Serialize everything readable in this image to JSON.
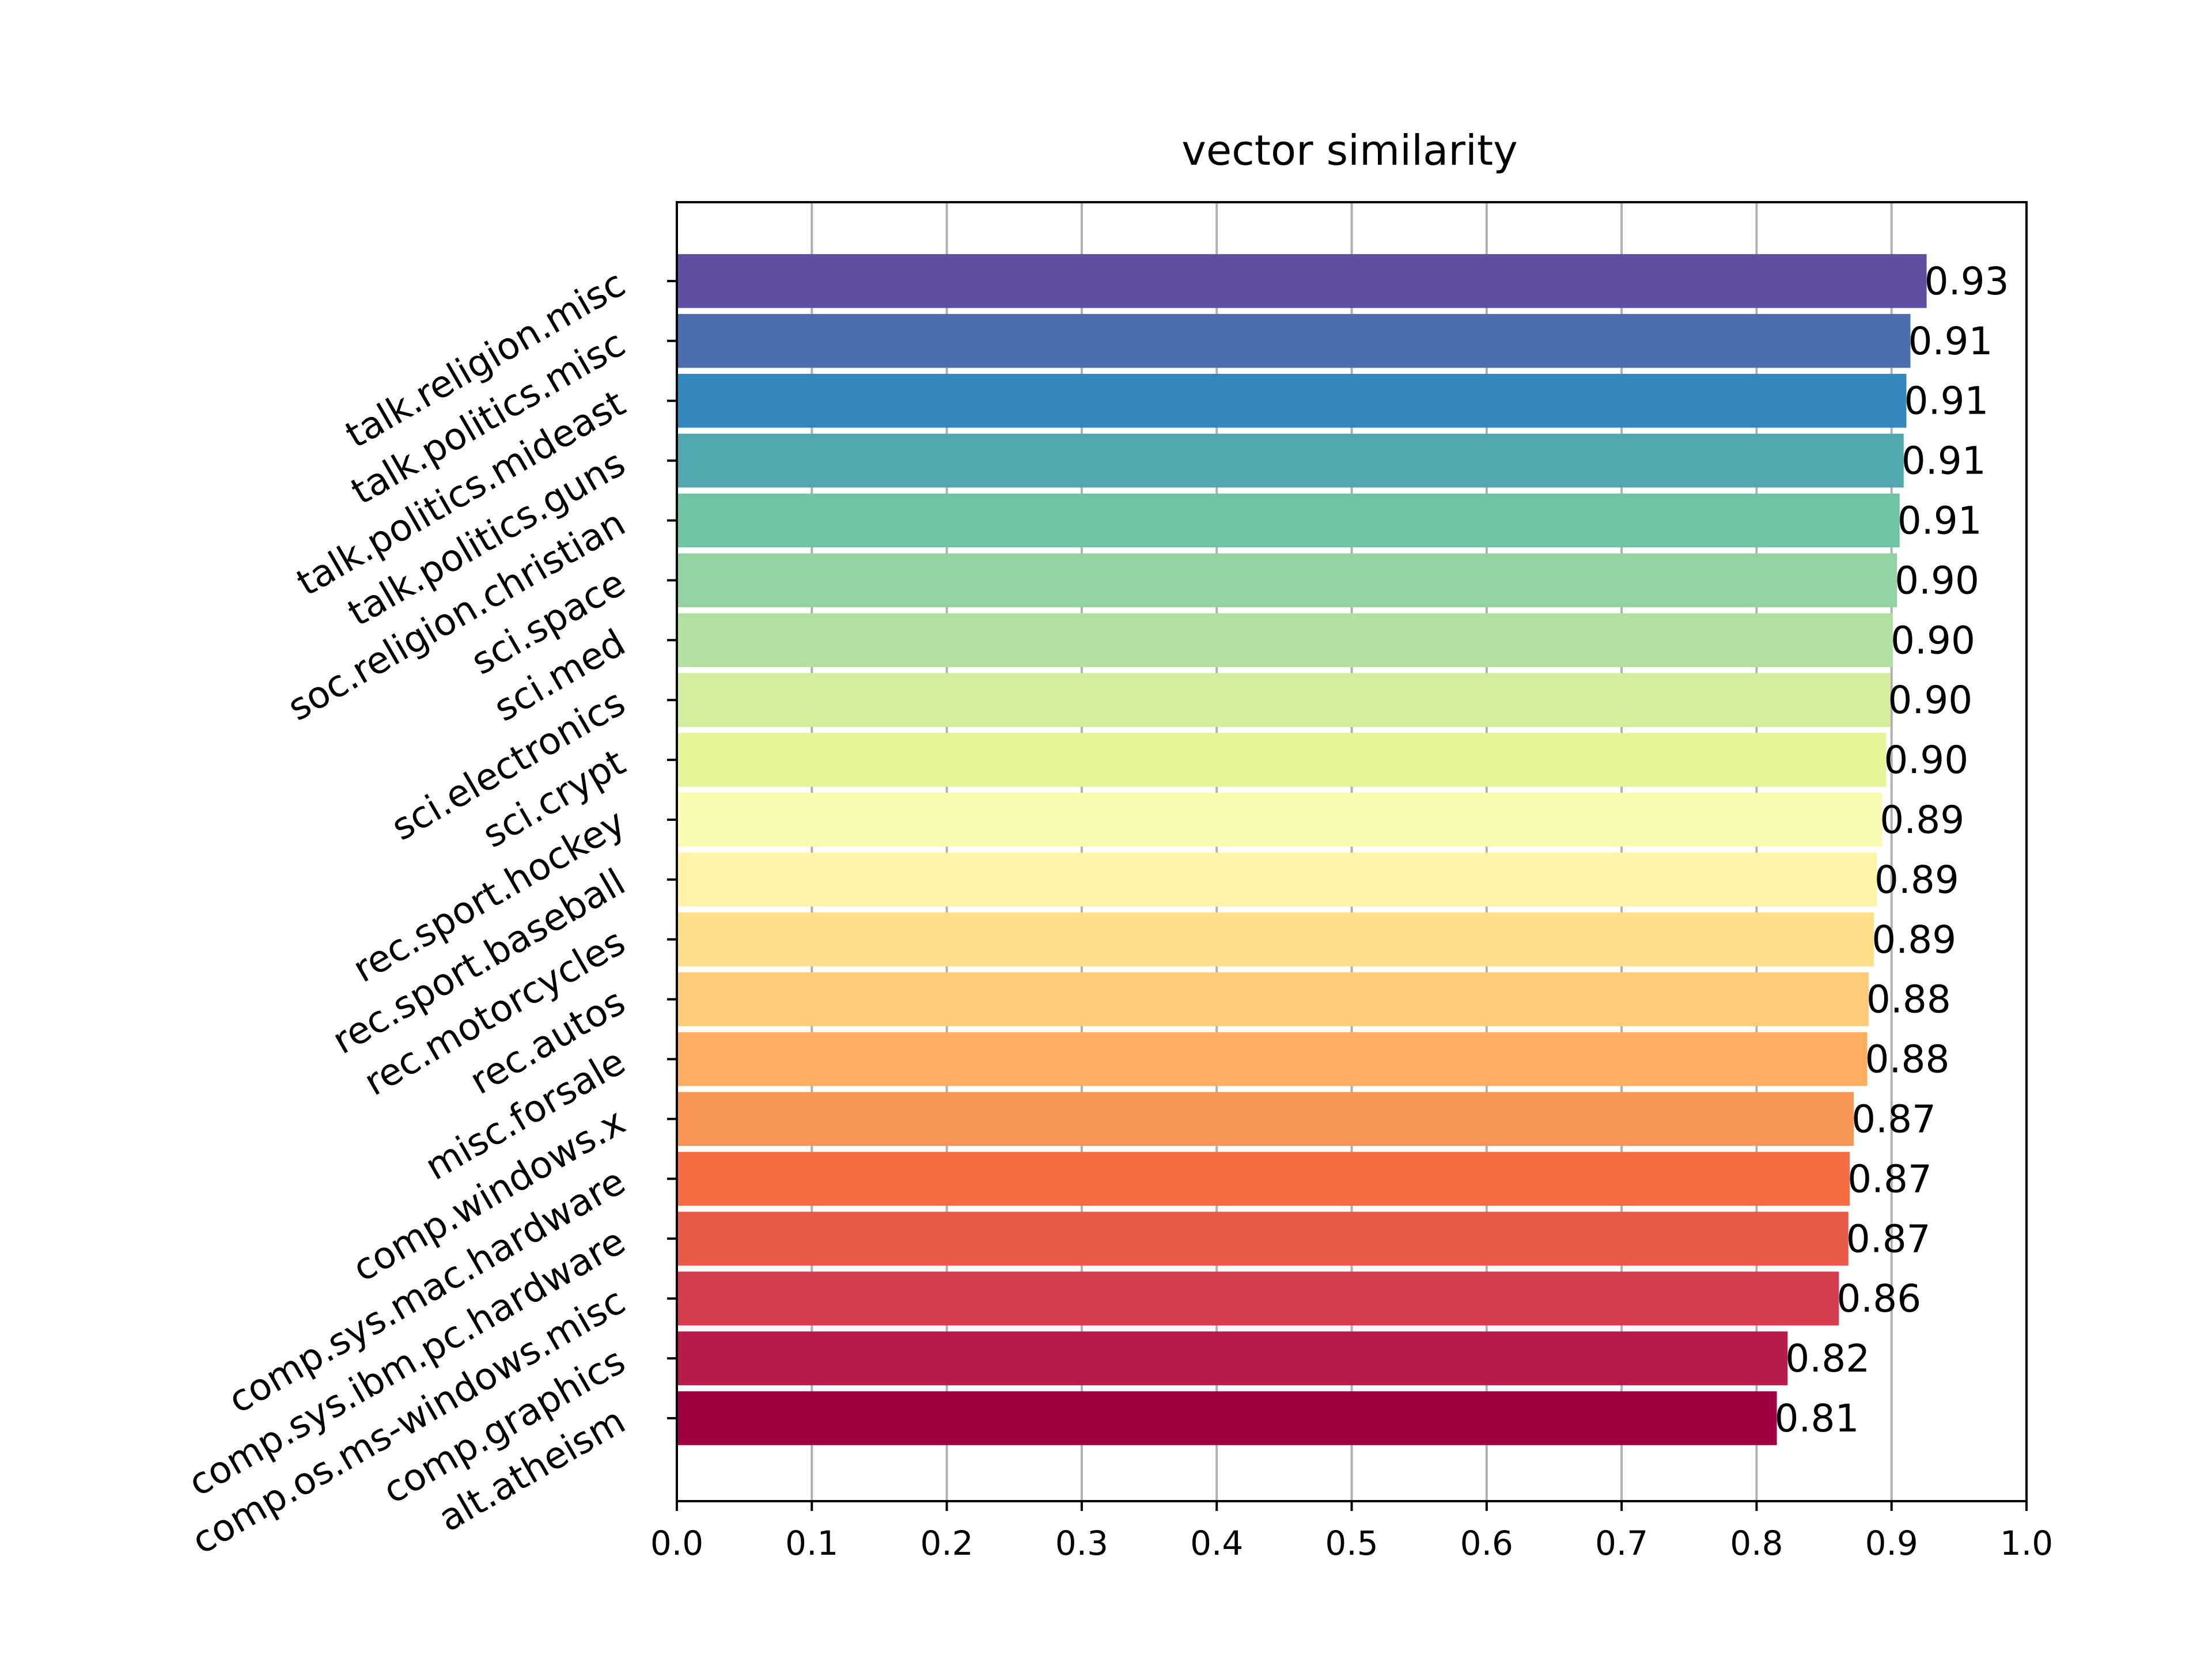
{
  "colors": {
    "grid": "#b0b0b0",
    "axis": "#000000",
    "background": "#ffffff",
    "bar_palette": [
      "#9e0142",
      "#b81c48",
      "#d53e4f",
      "#e75a47",
      "#f46d43",
      "#f99655",
      "#fdae61",
      "#fecb7b",
      "#fee08b",
      "#fff3a8",
      "#f9fcb0",
      "#e6f598",
      "#d2ed9b",
      "#b3e0a2",
      "#93d3a3",
      "#6dc5a4",
      "#52a7ae",
      "#3387bd",
      "#4b6eb0",
      "#5e4fa2"
    ]
  },
  "chart_data": {
    "type": "bar",
    "orientation": "horizontal",
    "title": "vector similarity",
    "xlabel": "",
    "ylabel": "",
    "xlim": [
      0.0,
      1.0
    ],
    "xticks": [
      "0.0",
      "0.1",
      "0.2",
      "0.3",
      "0.4",
      "0.5",
      "0.6",
      "0.7",
      "0.8",
      "0.9",
      "1.0"
    ],
    "grid": "vertical",
    "categories": [
      "alt.atheism",
      "comp.graphics",
      "comp.os.ms-windows.misc",
      "comp.sys.ibm.pc.hardware",
      "comp.sys.mac.hardware",
      "comp.windows.x",
      "misc.forsale",
      "rec.autos",
      "rec.motorcycles",
      "rec.sport.baseball",
      "rec.sport.hockey",
      "sci.crypt",
      "sci.electronics",
      "sci.med",
      "sci.space",
      "soc.religion.christian",
      "talk.politics.guns",
      "talk.politics.mideast",
      "talk.politics.misc",
      "talk.religion.misc"
    ],
    "values": [
      0.815,
      0.823,
      0.861,
      0.868,
      0.869,
      0.872,
      0.882,
      0.883,
      0.887,
      0.889,
      0.893,
      0.896,
      0.899,
      0.901,
      0.904,
      0.906,
      0.909,
      0.911,
      0.914,
      0.926
    ],
    "data_labels": [
      "0.81",
      "0.82",
      "0.86",
      "0.87",
      "0.87",
      "0.87",
      "0.88",
      "0.88",
      "0.89",
      "0.89",
      "0.89",
      "0.90",
      "0.90",
      "0.90",
      "0.90",
      "0.91",
      "0.91",
      "0.91",
      "0.91",
      "0.93"
    ]
  }
}
